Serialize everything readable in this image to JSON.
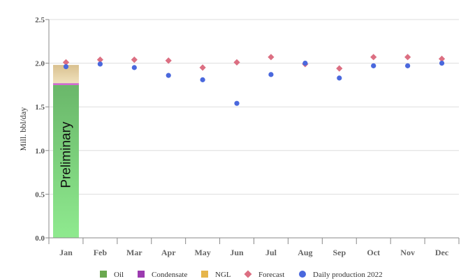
{
  "chart_data": {
    "type": "bar",
    "title": "",
    "xlabel": "",
    "ylabel": "Mill. bbl/day",
    "ylim": [
      0,
      2.5
    ],
    "yticks": [
      "0.0",
      "0.5",
      "1.0",
      "1.5",
      "2.0",
      "2.5"
    ],
    "ytick_values": [
      0,
      0.5,
      1.0,
      1.5,
      2.0,
      2.5
    ],
    "categories": [
      "Jan",
      "Feb",
      "Mar",
      "Apr",
      "May",
      "Jun",
      "Jul",
      "Aug",
      "Sep",
      "Oct",
      "Nov",
      "Dec"
    ],
    "stacked_series": [
      {
        "name": "Oil",
        "color": "#6aa84f",
        "values": [
          1.75,
          null,
          null,
          null,
          null,
          null,
          null,
          null,
          null,
          null,
          null,
          null
        ]
      },
      {
        "name": "Condensate",
        "color": "#9c3bb0",
        "values": [
          0.02,
          null,
          null,
          null,
          null,
          null,
          null,
          null,
          null,
          null,
          null,
          null
        ]
      },
      {
        "name": "NGL",
        "color": "#e6b54a",
        "values": [
          0.21,
          null,
          null,
          null,
          null,
          null,
          null,
          null,
          null,
          null,
          null,
          null
        ]
      }
    ],
    "points_series": [
      {
        "name": "Forecast",
        "marker": "diamond",
        "color": "#dc6f82",
        "values": [
          2.01,
          2.04,
          2.04,
          2.03,
          1.95,
          2.01,
          2.07,
          1.99,
          1.94,
          2.07,
          2.07,
          2.05
        ]
      },
      {
        "name": "Daily production 2022",
        "marker": "circle",
        "color": "#4a68dd",
        "values": [
          1.96,
          1.99,
          1.95,
          1.86,
          1.81,
          1.54,
          1.87,
          2.0,
          1.83,
          1.97,
          1.97,
          2.0
        ]
      }
    ],
    "annotation": "Preliminary",
    "legend": [
      "Oil",
      "Condensate",
      "NGL",
      "Forecast",
      "Daily production 2022"
    ],
    "legend_position": "bottom",
    "grid": true
  }
}
